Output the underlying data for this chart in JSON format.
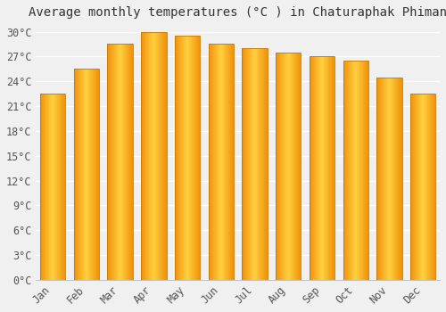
{
  "title": "Average monthly temperatures (°C ) in Chaturaphak Phiman",
  "months": [
    "Jan",
    "Feb",
    "Mar",
    "Apr",
    "May",
    "Jun",
    "Jul",
    "Aug",
    "Sep",
    "Oct",
    "Nov",
    "Dec"
  ],
  "temperatures": [
    22.5,
    25.5,
    28.5,
    30.0,
    29.5,
    28.5,
    28.0,
    27.5,
    27.0,
    26.5,
    24.5,
    22.5
  ],
  "bar_color_center": "#FFD040",
  "bar_color_edge": "#F0920A",
  "bar_outline_color": "#C87800",
  "ylim": [
    0,
    31
  ],
  "yticks": [
    0,
    3,
    6,
    9,
    12,
    15,
    18,
    21,
    24,
    27,
    30
  ],
  "ytick_labels": [
    "0°C",
    "3°C",
    "6°C",
    "9°C",
    "12°C",
    "15°C",
    "18°C",
    "21°C",
    "24°C",
    "27°C",
    "30°C"
  ],
  "bg_color": "#f0f0f0",
  "grid_color": "#ffffff",
  "title_fontsize": 10,
  "tick_fontsize": 8.5,
  "bar_width": 0.75,
  "n_gradient_steps": 50
}
